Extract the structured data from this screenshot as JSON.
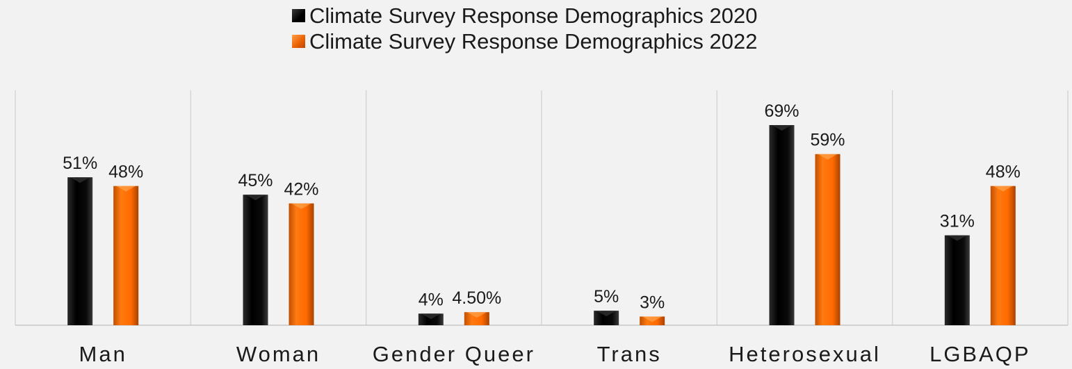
{
  "legend": {
    "items": [
      {
        "label": "Climate Survey Response Demographics 2020",
        "color": "#000000"
      },
      {
        "label": "Climate Survey Response Demographics 2022",
        "color": "#ff6f00"
      }
    ]
  },
  "chart_data": {
    "type": "bar",
    "title": "",
    "xlabel": "",
    "ylabel": "",
    "categories": [
      "Man",
      "Woman",
      "Gender Queer",
      "Trans",
      "Heterosexual",
      "LGBAQP"
    ],
    "series": [
      {
        "name": "Climate Survey Response Demographics 2020",
        "values": [
          51,
          45,
          4,
          5,
          69,
          31
        ],
        "labels": [
          "51%",
          "45%",
          "4%",
          "5%",
          "69%",
          "31%"
        ],
        "color": "#000000"
      },
      {
        "name": "Climate Survey Response Demographics 2022",
        "values": [
          48,
          42,
          4.5,
          3,
          59,
          48
        ],
        "labels": [
          "48%",
          "42%",
          "4.50%",
          "3%",
          "59%",
          "48%"
        ],
        "color": "#ff6f00"
      }
    ],
    "ylim": [
      0,
      100
    ],
    "grid": false,
    "legend_position": "top"
  }
}
